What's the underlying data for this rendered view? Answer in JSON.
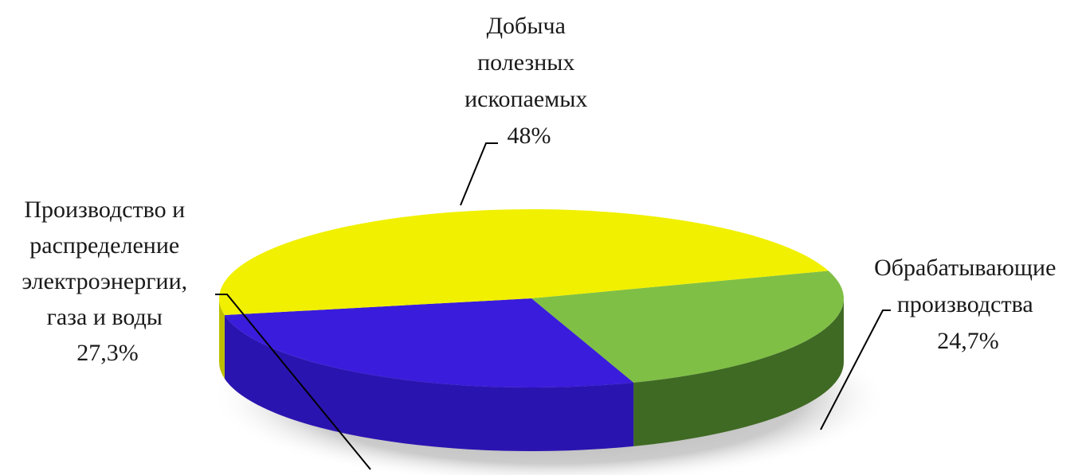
{
  "chart_data": {
    "type": "pie",
    "style": "3d",
    "slices": [
      {
        "label": [
          "Добыча",
          "полезных",
          "ископаемых"
        ],
        "value_label": "48%",
        "value": 48,
        "color": "#f0f000",
        "side_color": "#bdbd00"
      },
      {
        "label": [
          "Обрабатывающие",
          "производства"
        ],
        "value_label": "24,7%",
        "value": 24.7,
        "color": "#7fbf45",
        "side_color": "#3f6a23"
      },
      {
        "label": [
          "Производство и",
          "распределение",
          "электроэнергии,",
          "газа и воды"
        ],
        "value_label": "27,3%",
        "value": 27.3,
        "color": "#3a1cdc",
        "side_color": "#2a14b0"
      }
    ]
  }
}
